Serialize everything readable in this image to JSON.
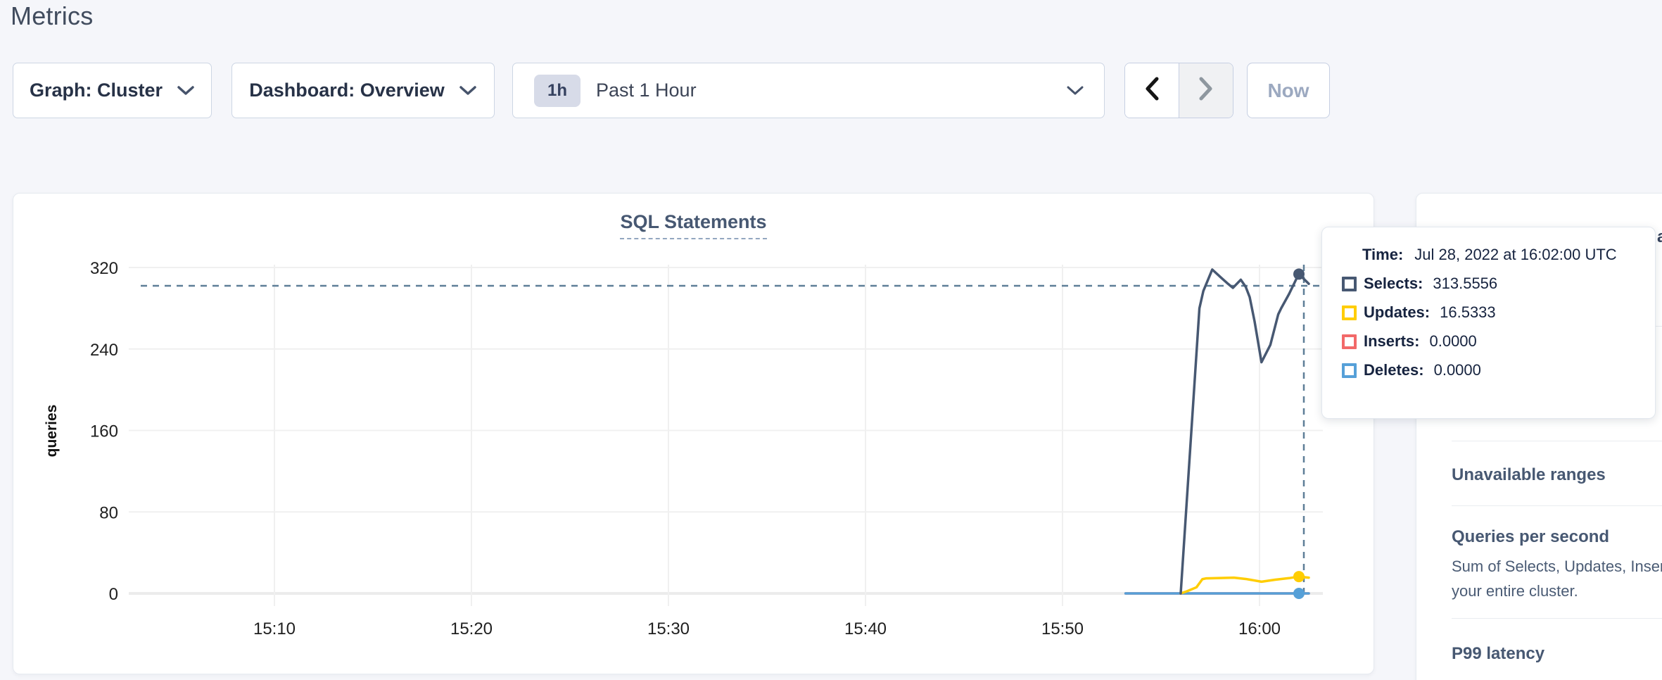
{
  "header": {
    "title": "Metrics"
  },
  "toolbar": {
    "graph_dropdown": "Graph: Cluster",
    "dashboard_dropdown": "Dashboard: Overview",
    "time_range_badge": "1h",
    "time_range_label": "Past 1 Hour",
    "now_button": "Now"
  },
  "chart_data": {
    "type": "line",
    "title": "SQL Statements",
    "ylabel": "queries",
    "x_minute_origin": "15:00",
    "x_range_minutes": [
      2.6,
      63.2
    ],
    "ylim": [
      0,
      320
    ],
    "grid": true,
    "y_ticks": [
      0,
      80,
      160,
      240,
      320
    ],
    "x_ticks": [
      {
        "label": "15:10",
        "minute": 10
      },
      {
        "label": "15:20",
        "minute": 20
      },
      {
        "label": "15:30",
        "minute": 30
      },
      {
        "label": "15:40",
        "minute": 40
      },
      {
        "label": "15:50",
        "minute": 50
      },
      {
        "label": "16:00",
        "minute": 60
      }
    ],
    "series": [
      {
        "name": "Selects",
        "color": "#475872",
        "points": [
          [
            56.0,
            0
          ],
          [
            56.95,
            280
          ],
          [
            57.15,
            297
          ],
          [
            57.6,
            318
          ],
          [
            58.05,
            310
          ],
          [
            58.4,
            304
          ],
          [
            58.65,
            300
          ],
          [
            59.05,
            308
          ],
          [
            59.3,
            301
          ],
          [
            59.5,
            291
          ],
          [
            59.75,
            267
          ],
          [
            60.1,
            227
          ],
          [
            60.55,
            244
          ],
          [
            60.95,
            274
          ],
          [
            61.1,
            280
          ],
          [
            61.5,
            294
          ],
          [
            61.85,
            308
          ],
          [
            62.0,
            313.56
          ],
          [
            62.5,
            304
          ]
        ]
      },
      {
        "name": "Updates",
        "color": "#ffcd02",
        "points": [
          [
            56.0,
            0
          ],
          [
            56.3,
            2
          ],
          [
            56.8,
            6
          ],
          [
            57.1,
            14
          ],
          [
            57.3,
            14.8
          ],
          [
            58.7,
            15.5
          ],
          [
            59.3,
            14.2
          ],
          [
            60.1,
            11.5
          ],
          [
            60.8,
            13.5
          ],
          [
            61.5,
            15
          ],
          [
            62.0,
            16.53
          ],
          [
            62.5,
            15.5
          ]
        ]
      },
      {
        "name": "Inserts",
        "color": "#f26969",
        "points": [
          [
            53.2,
            0
          ],
          [
            62.5,
            0
          ]
        ]
      },
      {
        "name": "Deletes",
        "color": "#56a0d8",
        "points": [
          [
            53.2,
            0
          ],
          [
            62.5,
            0
          ]
        ]
      }
    ],
    "hover": {
      "crosshair_minute": 62.25,
      "crosshair_value": 302,
      "dot_minute": 62.0,
      "dots": [
        {
          "series": "Selects",
          "value": 313.56
        },
        {
          "series": "Updates",
          "value": 16.53
        },
        {
          "series": "Deletes",
          "value": 0
        }
      ]
    }
  },
  "tooltip": {
    "time_label": "Time:",
    "time_value": "Jul 28, 2022 at 16:02:00 UTC",
    "rows": [
      {
        "label": "Selects:",
        "value": "313.5556",
        "color": "#475872"
      },
      {
        "label": "Updates:",
        "value": "16.5333",
        "color": "#ffcd02"
      },
      {
        "label": "Inserts:",
        "value": "0.0000",
        "color": "#f26969"
      },
      {
        "label": "Deletes:",
        "value": "0.0000",
        "color": "#56a0d8"
      }
    ]
  },
  "sidebar": {
    "top_fragment": "a",
    "sections": [
      {
        "title": "Unavailable ranges",
        "body_lines": []
      },
      {
        "title": "Queries per second",
        "body_lines": [
          "Sum of Selects, Updates, Inser",
          "your entire cluster."
        ]
      },
      {
        "title": "P99 latency",
        "body_lines": []
      }
    ]
  },
  "colors": {
    "accent_slate": "#475872",
    "grid_line": "#f0f0f0",
    "zero_line": "#ececec",
    "crosshair": "#5e7e97",
    "tick_text": "#1f1f1f"
  }
}
